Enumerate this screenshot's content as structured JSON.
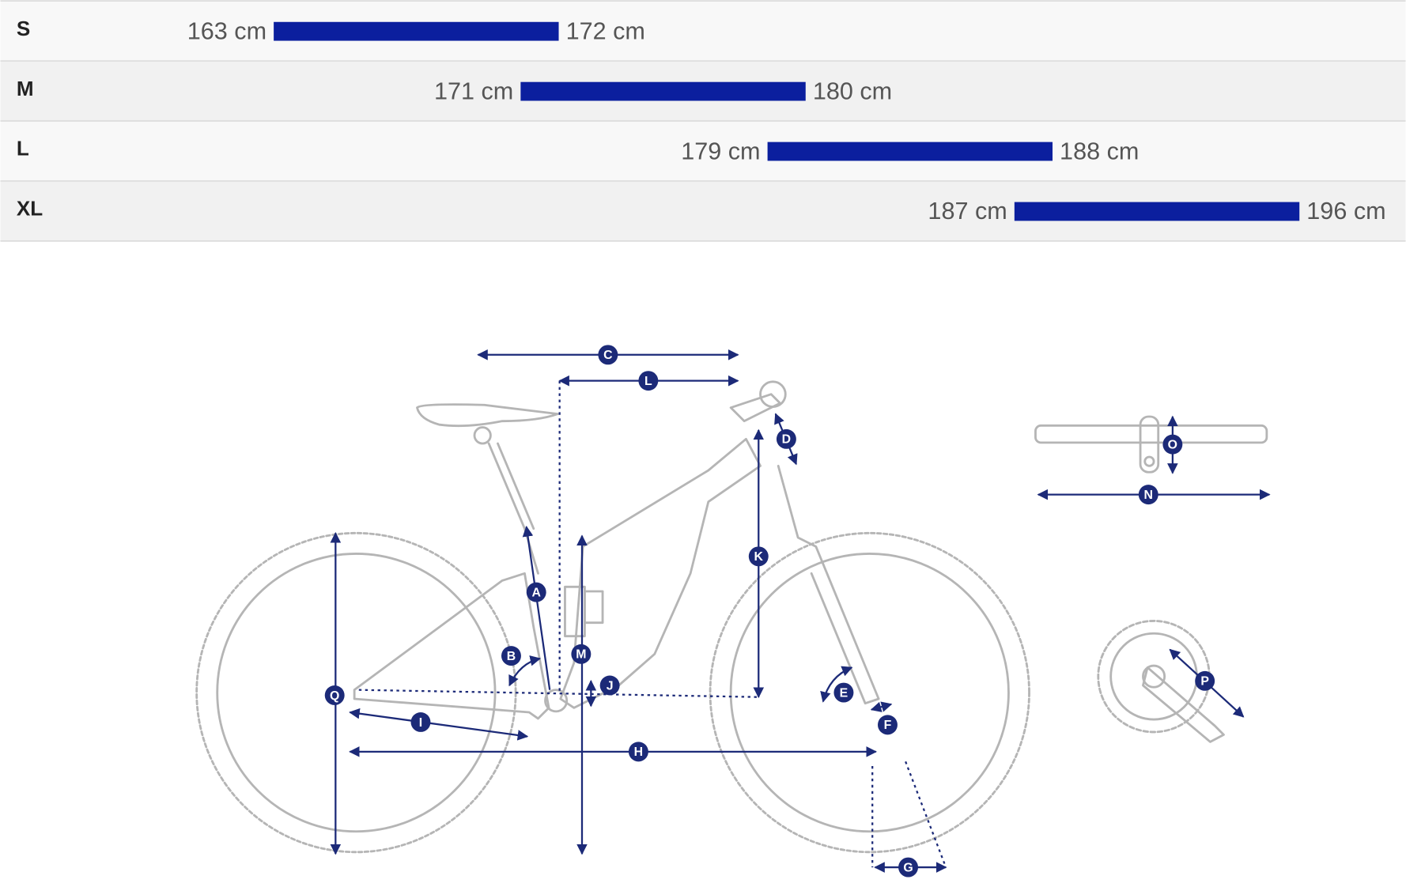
{
  "size_chart": {
    "rows": [
      {
        "size": "S",
        "min": "163 cm",
        "max": "172 cm"
      },
      {
        "size": "M",
        "min": "171 cm",
        "max": "180 cm"
      },
      {
        "size": "L",
        "min": "179 cm",
        "max": "188 cm"
      },
      {
        "size": "XL",
        "min": "187 cm",
        "max": "196 cm"
      }
    ]
  },
  "geometry": {
    "labels": [
      "A",
      "B",
      "C",
      "D",
      "E",
      "F",
      "G",
      "H",
      "I",
      "J",
      "K",
      "L",
      "M",
      "N",
      "O",
      "P",
      "Q"
    ]
  }
}
